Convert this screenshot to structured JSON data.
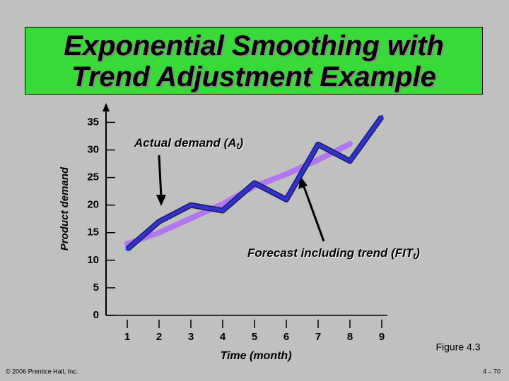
{
  "chart_data": {
    "type": "line",
    "title": [
      "Exponential Smoothing with",
      "Trend Adjustment Example"
    ],
    "x_label": "Time (month)",
    "y_label": "Product demand",
    "x": [
      1,
      2,
      3,
      4,
      5,
      6,
      7,
      8,
      9
    ],
    "xlim": [
      0.5,
      9.5
    ],
    "xticks": [
      1,
      2,
      3,
      4,
      5,
      6,
      7,
      8,
      9
    ],
    "ylim": [
      0,
      38
    ],
    "yticks": [
      0,
      5,
      10,
      15,
      20,
      25,
      30,
      35
    ],
    "series": [
      {
        "name": "Actual demand",
        "color": "#3333cc",
        "values": [
          12,
          17,
          20,
          19,
          24,
          21,
          31,
          28,
          36
        ]
      },
      {
        "name": "Forecast including trend",
        "color": "#b077f0",
        "values": [
          13,
          15,
          17.6,
          20.2,
          23.4,
          25.6,
          28.2,
          31.1,
          null
        ]
      }
    ],
    "annotations": [
      {
        "text": "Actual demand (A",
        "subscript": "t",
        "close": ")"
      },
      {
        "text": "Forecast including trend (FIT",
        "subscript": "t",
        "close": ")"
      }
    ],
    "figure": "Figure 4.3"
  },
  "footer": {
    "copyright": "© 2006 Prentice Hall, Inc.",
    "page": "4 – 70"
  }
}
